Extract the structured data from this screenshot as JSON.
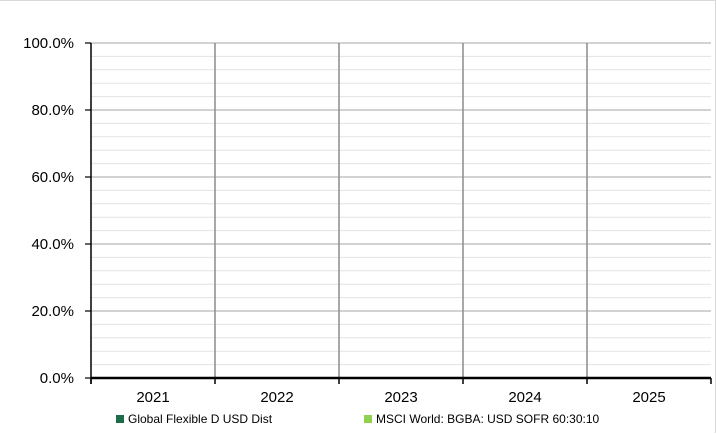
{
  "chart_data": {
    "type": "bar",
    "title": "",
    "xlabel": "",
    "ylabel": "",
    "categories": [
      "2021",
      "2022",
      "2023",
      "2024",
      "2025"
    ],
    "ylim": [
      0,
      100
    ],
    "y_ticks": [
      "0.0%",
      "20.0%",
      "40.0%",
      "60.0%",
      "80.0%",
      "100.0%"
    ],
    "grid": true,
    "legend_position": "bottom",
    "series": [
      {
        "name": "Global Flexible D USD Dist",
        "color": "#1e6b4a",
        "values": [
          null,
          null,
          null,
          null,
          null
        ]
      },
      {
        "name": "MSCI World: BGBA: USD SOFR 60:30:10",
        "color": "#92d050",
        "values": [
          null,
          null,
          null,
          null,
          null
        ]
      }
    ]
  }
}
